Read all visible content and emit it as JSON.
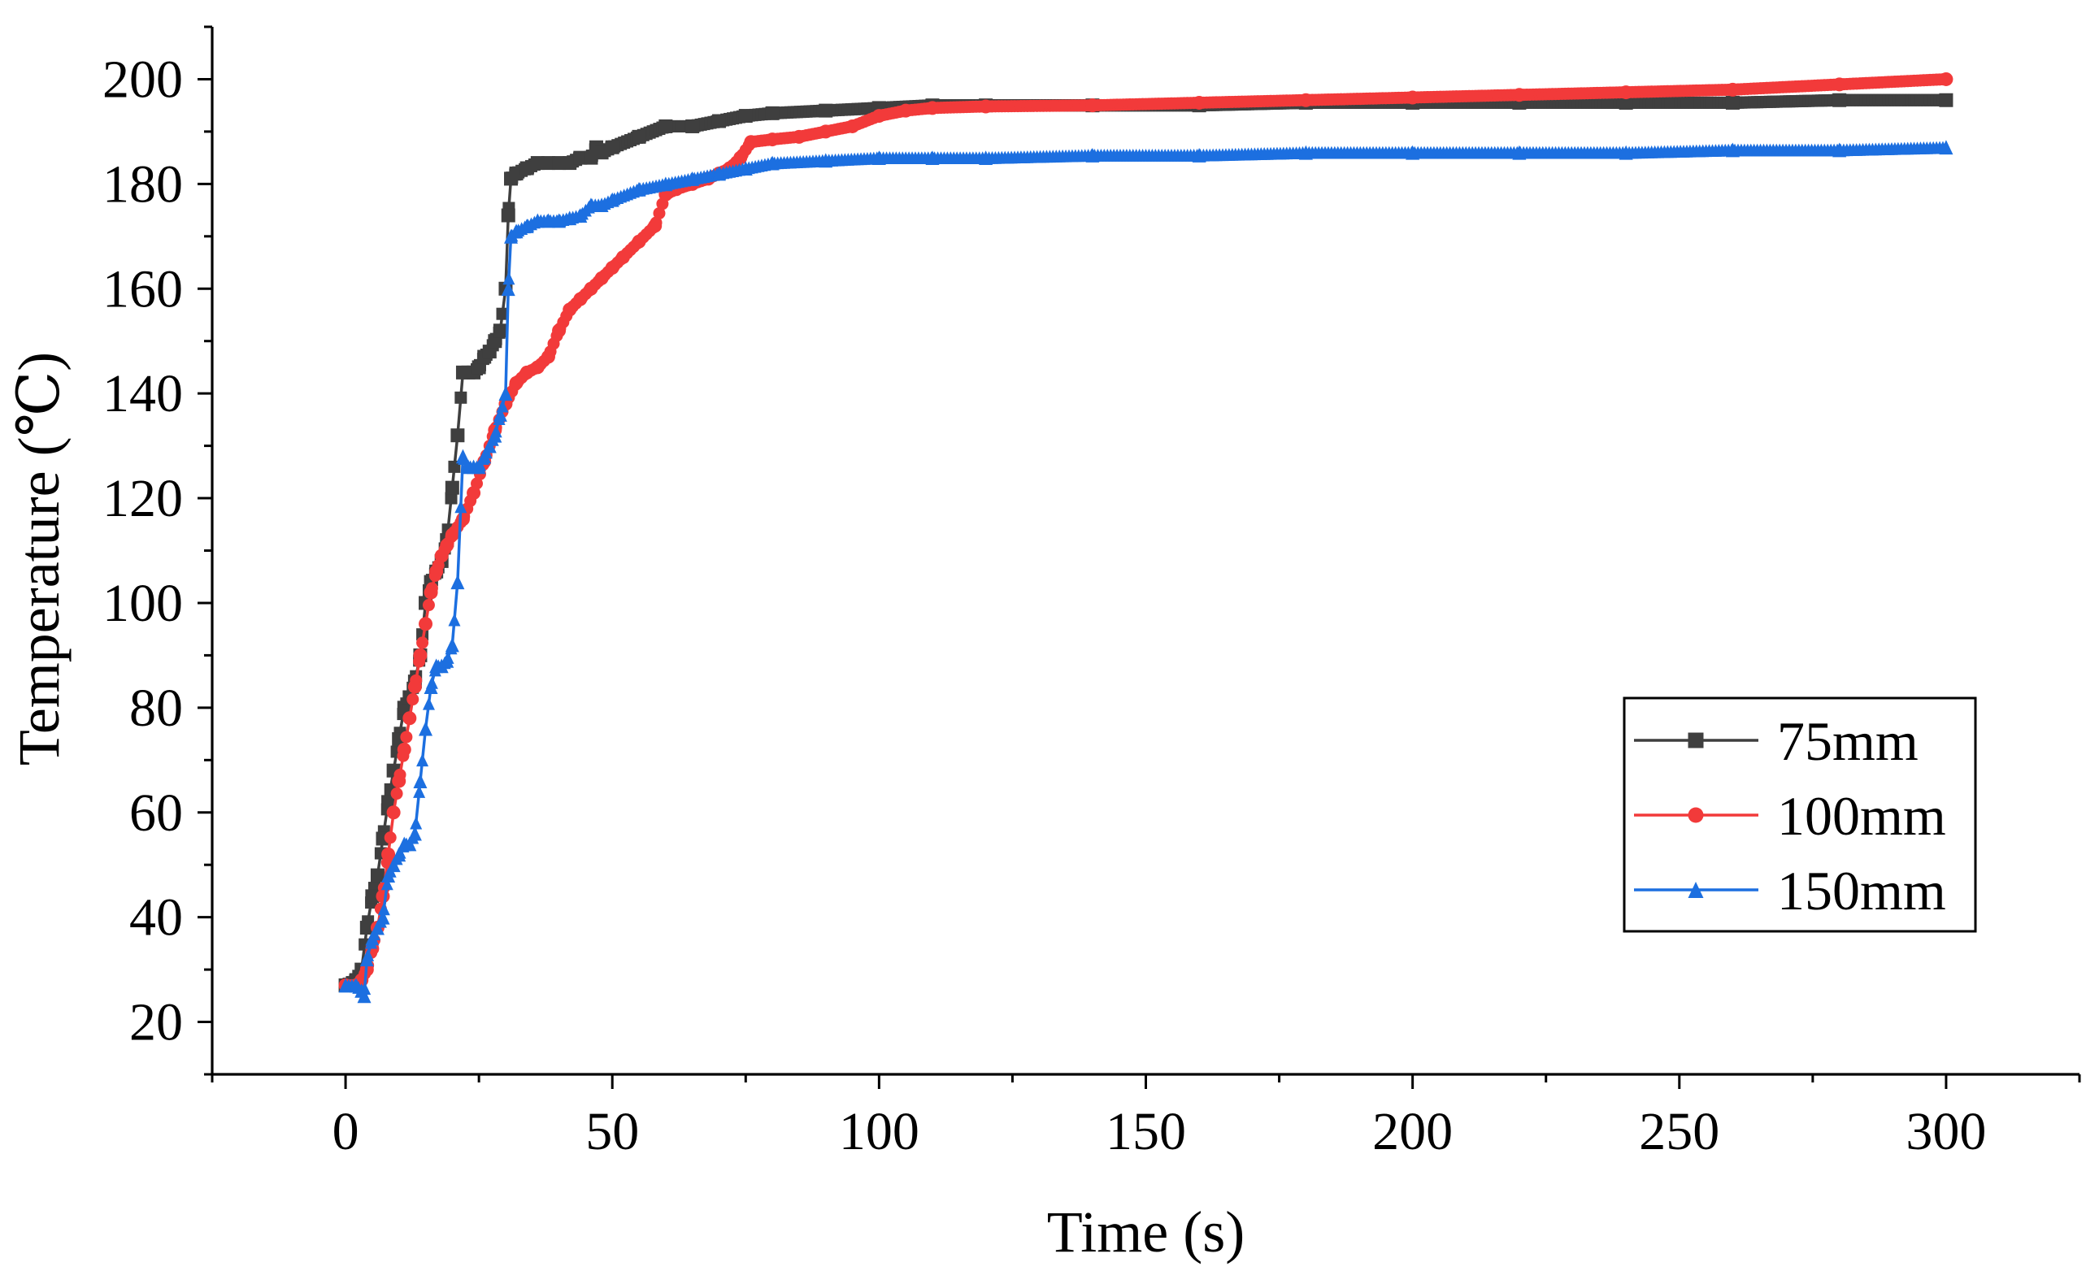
{
  "chart_data": {
    "type": "line",
    "title": "",
    "xlabel": "Time (s)",
    "ylabel": "Temperature (℃)",
    "xlim": [
      -25,
      325
    ],
    "ylim": [
      10,
      210
    ],
    "x_ticks": [
      0,
      50,
      100,
      150,
      200,
      250,
      300
    ],
    "y_ticks": [
      20,
      40,
      60,
      80,
      100,
      120,
      140,
      160,
      180,
      200
    ],
    "grid": false,
    "legend_position": "center-right",
    "series": [
      {
        "name": "75mm",
        "color": "#3f3f3f",
        "marker": "square",
        "x": [
          0,
          2,
          3,
          4,
          5,
          6,
          7,
          8,
          9,
          10,
          11,
          12,
          13,
          14,
          15,
          16,
          17,
          18,
          19,
          20,
          21,
          22,
          23,
          24,
          25,
          26,
          27,
          28,
          29,
          30,
          30.5,
          31,
          32,
          34,
          36,
          38,
          40,
          42,
          44,
          46,
          47,
          48,
          50,
          55,
          60,
          65,
          70,
          75,
          80,
          90,
          100,
          110,
          120,
          140,
          160,
          180,
          200,
          220,
          240,
          260,
          280,
          300
        ],
        "y": [
          27,
          28,
          30,
          38,
          44,
          48,
          55,
          62,
          68,
          74,
          80,
          82,
          85,
          90,
          100,
          104,
          106,
          108,
          112,
          122,
          132,
          144,
          144,
          144,
          145,
          147,
          148,
          150,
          152,
          160,
          174,
          181,
          182,
          183,
          184,
          184,
          184,
          184,
          185,
          185,
          187,
          186,
          187,
          189,
          191,
          191,
          192,
          193,
          193.5,
          194,
          194.5,
          195,
          195,
          195,
          195,
          195.5,
          195.5,
          195.5,
          195.5,
          195.5,
          196,
          196
        ]
      },
      {
        "name": "100mm",
        "color": "#f23a3a",
        "marker": "circle",
        "x": [
          0,
          2,
          3,
          4,
          5,
          6,
          7,
          8,
          9,
          10,
          11,
          12,
          13,
          14,
          15,
          16,
          17,
          18,
          19,
          20,
          22,
          24,
          26,
          28,
          30,
          32,
          34,
          36,
          38,
          40,
          42,
          44,
          46,
          48,
          50,
          52,
          55,
          58,
          60,
          62,
          65,
          68,
          70,
          72,
          74,
          76,
          80,
          85,
          90,
          95,
          100,
          105,
          110,
          120,
          140,
          160,
          180,
          200,
          220,
          240,
          260,
          280,
          300
        ],
        "y": [
          27,
          27,
          28,
          30,
          34,
          38,
          44,
          52,
          60,
          66,
          72,
          78,
          84,
          90,
          96,
          102,
          106,
          109,
          111,
          113,
          116,
          121,
          127,
          133,
          138,
          142,
          144,
          145,
          147,
          152,
          156,
          158,
          160,
          162,
          164,
          166,
          169,
          172,
          178,
          179,
          180,
          181,
          182,
          183,
          185,
          188,
          188.5,
          189,
          190,
          191,
          193,
          194,
          194.5,
          194.8,
          195,
          195.5,
          196,
          196.5,
          197,
          197.5,
          198,
          199,
          200
        ]
      },
      {
        "name": "150mm",
        "color": "#1c6fe0",
        "marker": "triangle",
        "x": [
          0,
          2,
          3,
          3.5,
          4,
          5,
          6,
          7,
          8,
          9,
          10,
          11,
          12,
          13,
          14,
          15,
          16,
          17,
          18,
          19,
          20,
          21,
          22,
          23,
          24,
          25,
          26,
          27,
          28,
          29,
          30,
          30.5,
          31,
          32,
          34,
          36,
          38,
          40,
          42,
          44,
          46,
          48,
          50,
          55,
          60,
          65,
          70,
          75,
          80,
          90,
          100,
          110,
          120,
          140,
          160,
          180,
          200,
          220,
          240,
          260,
          280,
          300
        ],
        "y": [
          27,
          27,
          26,
          25,
          32,
          36,
          38,
          40,
          48,
          50,
          52,
          54,
          54,
          56,
          66,
          76,
          84,
          88,
          88,
          89,
          92,
          104,
          128,
          126,
          126,
          126,
          128,
          130,
          132,
          136,
          140,
          160,
          170,
          171,
          172,
          173,
          173,
          173,
          173.5,
          174,
          176,
          176,
          177,
          179,
          180,
          181,
          182,
          183,
          184,
          184.5,
          185,
          185,
          185,
          185.5,
          185.5,
          186,
          186,
          186,
          186,
          186.5,
          186.5,
          187
        ]
      }
    ]
  }
}
